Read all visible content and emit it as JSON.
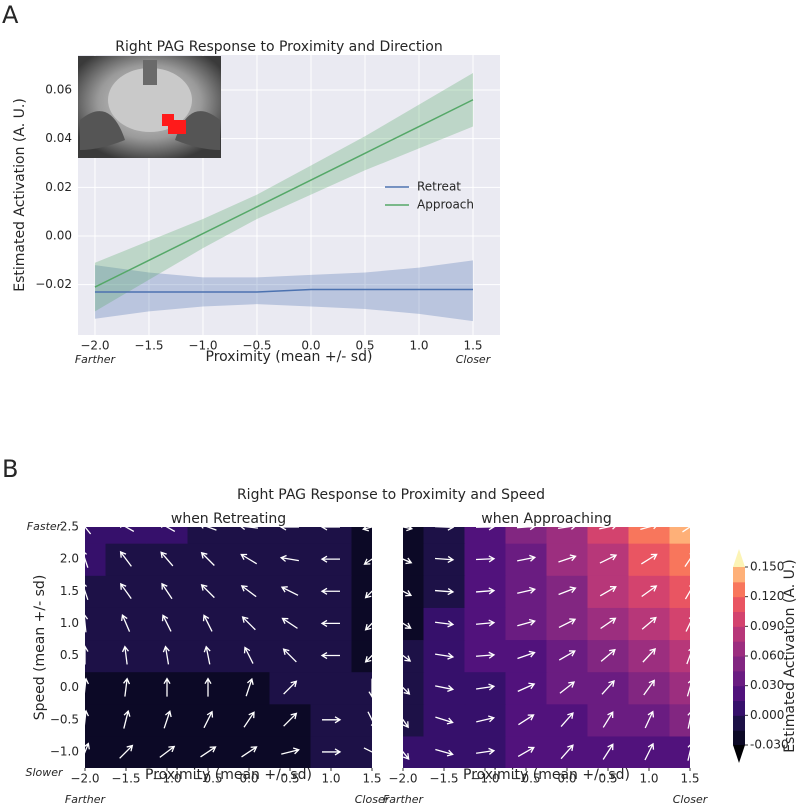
{
  "chart_data": [
    {
      "type": "line",
      "panel_label": "A",
      "title": "Right PAG Response to Proximity and Direction",
      "x_label": "Proximity (mean +/- sd)",
      "y_label": "Estimated Activation (A. U.)",
      "annotations": [
        "Farther",
        "Closer"
      ],
      "x": [
        -2.0,
        -1.5,
        -1.0,
        -0.5,
        0.0,
        0.5,
        1.0,
        1.5
      ],
      "series": [
        {
          "name": "Retreat",
          "color": "#4c72b0",
          "values": [
            -0.023,
            -0.023,
            -0.023,
            -0.023,
            -0.022,
            -0.022,
            -0.022,
            -0.022
          ],
          "lower": [
            -0.034,
            -0.031,
            -0.029,
            -0.028,
            -0.029,
            -0.03,
            -0.032,
            -0.035
          ],
          "upper": [
            -0.012,
            -0.015,
            -0.017,
            -0.017,
            -0.016,
            -0.015,
            -0.013,
            -0.01
          ]
        },
        {
          "name": "Approach",
          "color": "#55a868",
          "values": [
            -0.021,
            -0.01,
            0.001,
            0.012,
            0.023,
            0.034,
            0.045,
            0.056
          ],
          "lower": [
            -0.031,
            -0.018,
            -0.005,
            0.007,
            0.017,
            0.027,
            0.036,
            0.045
          ],
          "upper": [
            -0.011,
            -0.002,
            0.007,
            0.017,
            0.029,
            0.041,
            0.054,
            0.067
          ]
        }
      ],
      "xlim": [
        -2.157,
        1.75
      ],
      "ylim": [
        -0.0407,
        0.0744
      ],
      "xticks": [
        {
          "value": -2.0,
          "label": "−2.0"
        },
        {
          "value": -1.5,
          "label": "−1.5"
        },
        {
          "value": -1.0,
          "label": "−1.0"
        },
        {
          "value": -0.5,
          "label": "−0.5"
        },
        {
          "value": 0.0,
          "label": "0.0"
        },
        {
          "value": 0.5,
          "label": "0.5"
        },
        {
          "value": 1.0,
          "label": "1.0"
        },
        {
          "value": 1.5,
          "label": "1.5"
        }
      ],
      "yticks": [
        {
          "value": -0.02,
          "label": "−0.02"
        },
        {
          "value": 0.0,
          "label": "0.00"
        },
        {
          "value": 0.02,
          "label": "0.02"
        },
        {
          "value": 0.04,
          "label": "0.04"
        },
        {
          "value": 0.06,
          "label": "0.06"
        }
      ],
      "grid": true,
      "legend": "center right"
    },
    {
      "type": "contour",
      "panel_label": "B",
      "title": "Right PAG Response to Proximity and Speed",
      "x_label": "Proximity (mean +/- sd)",
      "y_label": "Speed (mean +/- sd)",
      "annotations": [
        "Farther",
        "Closer"
      ],
      "y_annotations": [
        "Slower",
        "Faster"
      ],
      "x": [
        -2.0,
        -1.5,
        -1.0,
        -0.5,
        0.0,
        0.5,
        1.0,
        1.5
      ],
      "y": [
        -1.0,
        -0.5,
        0.0,
        0.5,
        1.0,
        1.5,
        2.0,
        2.5
      ],
      "panels": [
        {
          "subtitle": "when Retreating",
          "z": [
            [
              -0.025,
              -0.023,
              -0.021,
              -0.019,
              -0.018,
              -0.016,
              -0.014,
              -0.012
            ],
            [
              -0.02,
              -0.019,
              -0.018,
              -0.017,
              -0.016,
              -0.015,
              -0.014,
              -0.013
            ],
            [
              -0.016,
              -0.015,
              -0.015,
              -0.015,
              -0.015,
              -0.014,
              -0.014,
              -0.014
            ],
            [
              -0.011,
              -0.011,
              -0.012,
              -0.012,
              -0.013,
              -0.014,
              -0.014,
              -0.015
            ],
            [
              -0.006,
              -0.007,
              -0.009,
              -0.01,
              -0.011,
              -0.013,
              -0.014,
              -0.015
            ],
            [
              -0.001,
              -0.004,
              -0.006,
              -0.008,
              -0.01,
              -0.012,
              -0.014,
              -0.016
            ],
            [
              0.003,
              0.0,
              -0.003,
              -0.006,
              -0.008,
              -0.011,
              -0.014,
              -0.017
            ],
            [
              0.008,
              0.004,
              0.001,
              -0.003,
              -0.007,
              -0.011,
              -0.014,
              -0.018
            ]
          ]
        },
        {
          "subtitle": "when Approaching",
          "z": [
            [
              0.005,
              0.009,
              0.012,
              0.016,
              0.019,
              0.023,
              0.026,
              0.03
            ],
            [
              0.0,
              0.007,
              0.013,
              0.02,
              0.027,
              0.034,
              0.04,
              0.047
            ],
            [
              -0.005,
              0.005,
              0.015,
              0.025,
              0.035,
              0.044,
              0.054,
              0.064
            ],
            [
              -0.01,
              0.003,
              0.016,
              0.029,
              0.042,
              0.055,
              0.068,
              0.081
            ],
            [
              -0.015,
              0.001,
              0.017,
              0.034,
              0.05,
              0.066,
              0.082,
              0.099
            ],
            [
              -0.02,
              -0.001,
              0.019,
              0.038,
              0.058,
              0.077,
              0.096,
              0.116
            ],
            [
              -0.025,
              -0.002,
              0.02,
              0.043,
              0.065,
              0.088,
              0.11,
              0.133
            ],
            [
              -0.03,
              -0.004,
              0.021,
              0.047,
              0.073,
              0.099,
              0.124,
              0.15
            ]
          ]
        }
      ],
      "xlim": [
        -2.0,
        1.5
      ],
      "ylim": [
        -1.25,
        2.5
      ],
      "xticks": [
        {
          "value": -2.0,
          "label": "−2.0"
        },
        {
          "value": -1.5,
          "label": "−1.5"
        },
        {
          "value": -1.0,
          "label": "−1.0"
        },
        {
          "value": -0.5,
          "label": "−0.5"
        },
        {
          "value": 0.0,
          "label": "0.0"
        },
        {
          "value": 0.5,
          "label": "0.5"
        },
        {
          "value": 1.0,
          "label": "1.0"
        },
        {
          "value": 1.5,
          "label": "1.5"
        }
      ],
      "yticks": [
        {
          "value": -1.0,
          "label": "−1.0"
        },
        {
          "value": -0.5,
          "label": "−0.5"
        },
        {
          "value": 0.0,
          "label": "0.0"
        },
        {
          "value": 0.5,
          "label": "0.5"
        },
        {
          "value": 1.0,
          "label": "1.0"
        },
        {
          "value": 1.5,
          "label": "1.5"
        },
        {
          "value": 2.0,
          "label": "2.0"
        },
        {
          "value": 2.5,
          "label": "2.5"
        }
      ],
      "colorbar": {
        "label": "Estimated Activation (A. U.)",
        "levels": [
          -0.03,
          -0.015,
          0.0,
          0.015,
          0.03,
          0.045,
          0.06,
          0.075,
          0.09,
          0.105,
          0.12,
          0.135,
          0.15
        ],
        "colors": [
          "#0c0926",
          "#1d1147",
          "#36106b",
          "#51127c",
          "#6a1c81",
          "#822681",
          "#9c2e7f",
          "#b73779",
          "#d3436e",
          "#e95562",
          "#f8765c",
          "#feb078"
        ],
        "under_color": "#000004",
        "over_color": "#fcf4b6",
        "ticks": [
          {
            "value": -0.03,
            "label": "-0.030"
          },
          {
            "value": 0.0,
            "label": "0.000"
          },
          {
            "value": 0.03,
            "label": "0.030"
          },
          {
            "value": 0.06,
            "label": "0.060"
          },
          {
            "value": 0.09,
            "label": "0.090"
          },
          {
            "value": 0.12,
            "label": "0.120"
          },
          {
            "value": 0.15,
            "label": "0.150"
          }
        ]
      },
      "arrow_color": "#ffffff"
    }
  ]
}
